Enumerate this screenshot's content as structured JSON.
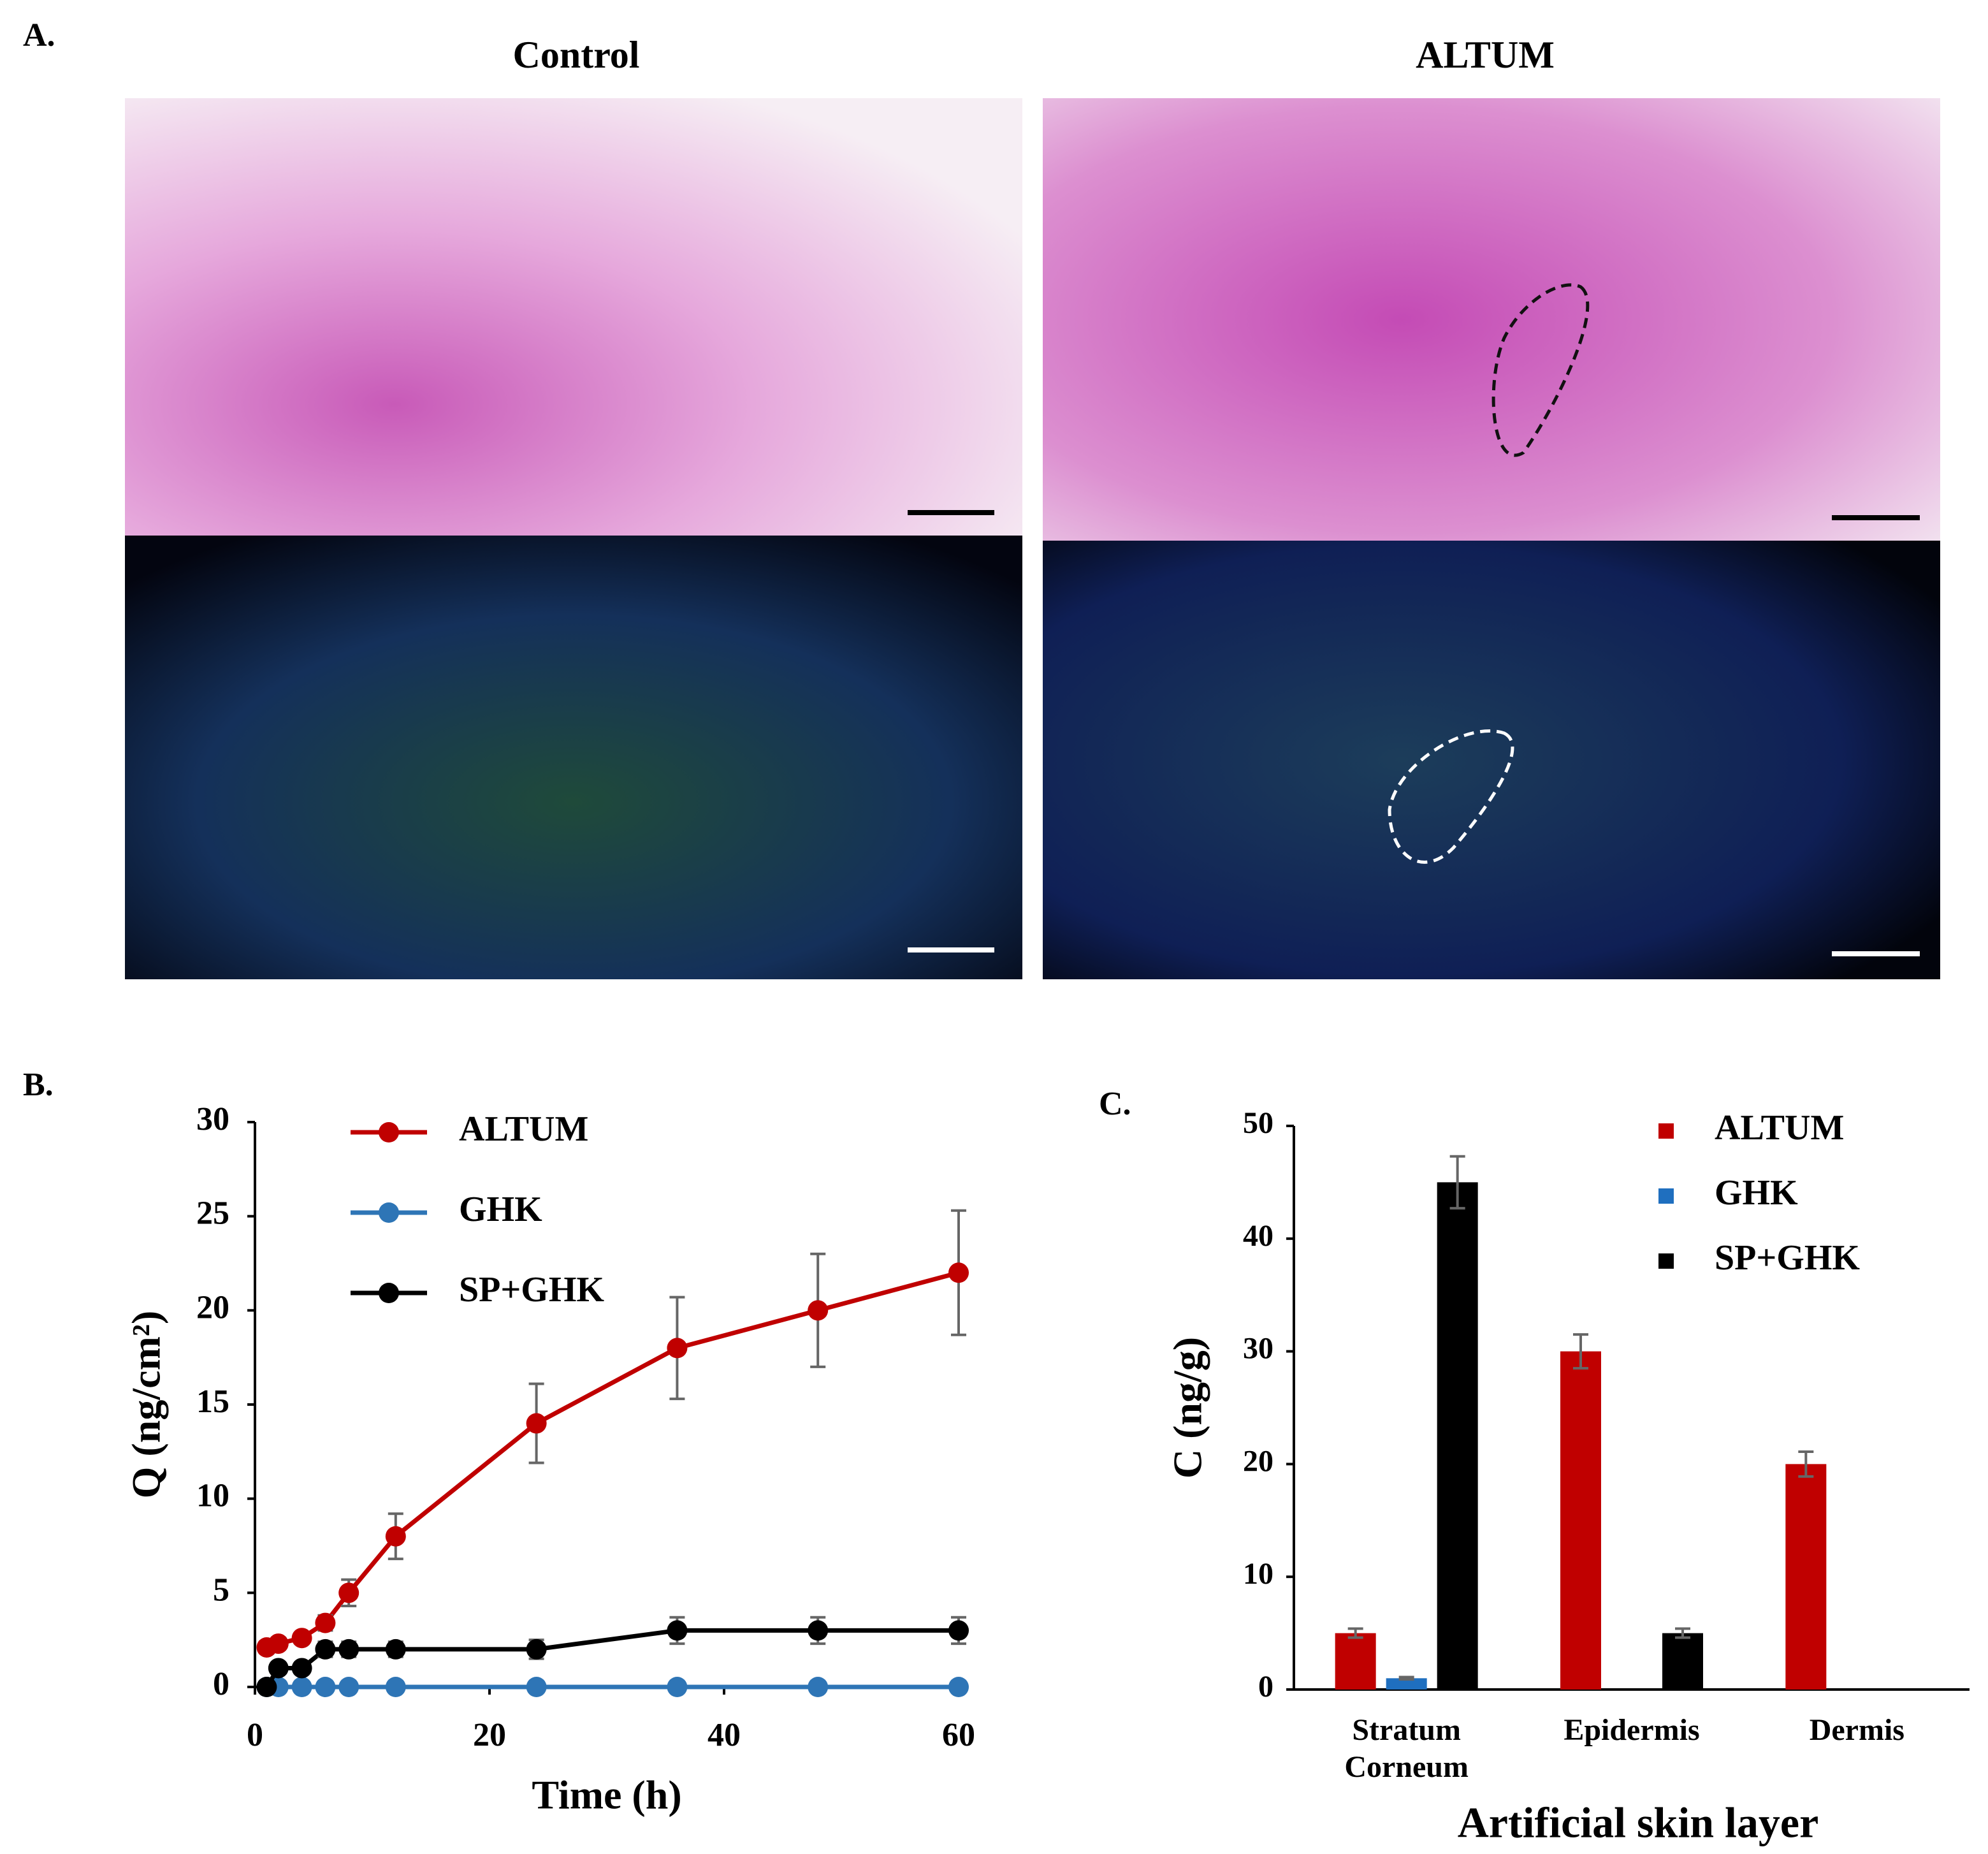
{
  "figure": {
    "panel_a": {
      "label": "A.",
      "titles": [
        "Control",
        "ALTUM"
      ]
    },
    "panel_b": {
      "label": "B."
    },
    "panel_c": {
      "label": "C."
    }
  },
  "chart_data": [
    {
      "type": "line",
      "x_label": "Time (h)",
      "y_label": "Q (ng/cm²)",
      "x": [
        1,
        2,
        4,
        6,
        8,
        12,
        24,
        36,
        48,
        60
      ],
      "series": [
        {
          "name": "ALTUM",
          "color": "#c00000",
          "values": [
            2.1,
            2.3,
            2.6,
            3.4,
            5,
            8,
            14,
            18,
            20,
            22
          ],
          "errors": [
            0.3,
            0.3,
            0.3,
            0.4,
            0.7,
            1.2,
            2.1,
            2.7,
            3,
            3.3
          ]
        },
        {
          "name": "GHK",
          "color": "#2e75b6",
          "values": [
            0,
            0,
            0,
            0,
            0,
            0,
            0,
            0,
            0,
            0
          ]
        },
        {
          "name": "SP+GHK",
          "color": "#000000",
          "values": [
            0,
            1,
            1,
            2,
            2,
            2,
            2,
            3,
            3,
            3
          ],
          "errors": [
            0.1,
            0.2,
            0.3,
            0.4,
            0.4,
            0.4,
            0.5,
            0.7,
            0.7,
            0.7
          ]
        }
      ],
      "xlim": [
        0,
        60
      ],
      "xticks": [
        0,
        20,
        40,
        60
      ],
      "ylim": [
        0,
        30
      ],
      "yticks": [
        0,
        5,
        10,
        15,
        20,
        25,
        30
      ]
    },
    {
      "type": "bar",
      "x_label": "Artificial skin layer",
      "y_label": "C (ng/g)",
      "categories": [
        "Stratum Corneum",
        "Epidermis",
        "Dermis"
      ],
      "series": [
        {
          "name": "ALTUM",
          "color": "#c00000",
          "values": [
            5,
            30,
            20
          ],
          "errors": [
            0.4,
            1.5,
            1.1
          ]
        },
        {
          "name": "GHK",
          "color": "#1f6fbf",
          "values": [
            1,
            0,
            0
          ],
          "errors": [
            0.1,
            null,
            null
          ]
        },
        {
          "name": "SP+GHK",
          "color": "#000000",
          "values": [
            45,
            5,
            0
          ],
          "errors": [
            2.3,
            0.4,
            null
          ]
        }
      ],
      "ylim": [
        0,
        50
      ],
      "yticks": [
        0,
        10,
        20,
        30,
        40,
        50
      ]
    }
  ]
}
